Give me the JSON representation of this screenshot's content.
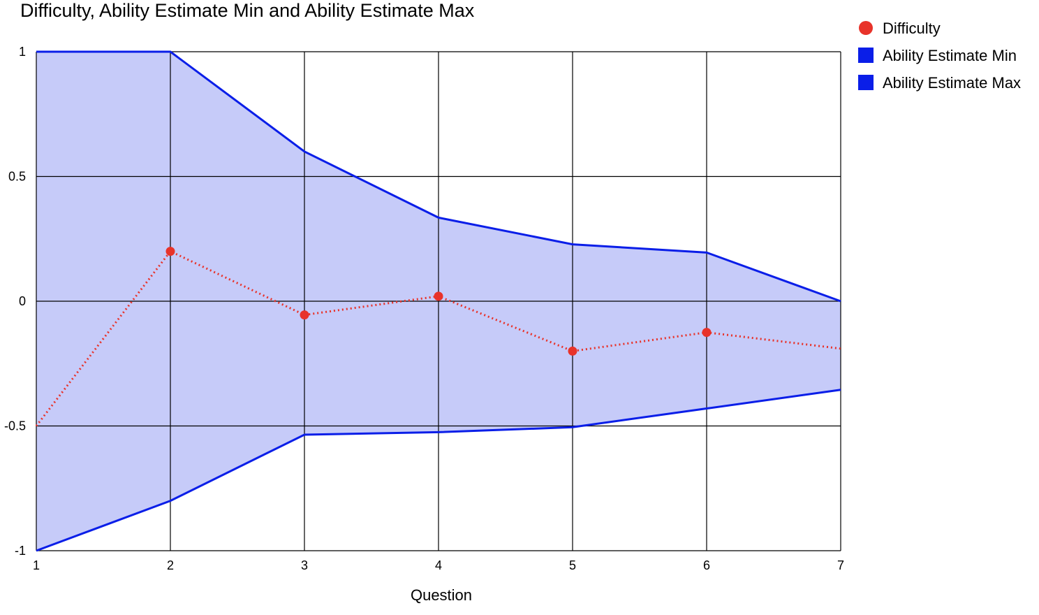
{
  "chart_data": {
    "type": "line",
    "title": "Difficulty, Ability Estimate Min and Ability Estimate Max",
    "xlabel": "Question",
    "ylabel": "",
    "x": [
      1,
      2,
      3,
      4,
      5,
      6,
      7
    ],
    "xlim": [
      1,
      7
    ],
    "ylim": [
      -1,
      1
    ],
    "yticks": [
      -1,
      -0.5,
      0,
      0.5,
      1
    ],
    "ytick_labels": [
      "-1",
      "-0.5",
      "0",
      "0.5",
      "1"
    ],
    "xtick_labels": [
      "1",
      "2",
      "3",
      "4",
      "5",
      "6",
      "7"
    ],
    "grid": true,
    "legend_position": "top-right",
    "series": [
      {
        "name": "Difficulty",
        "kind": "dotted-line-markers",
        "color": "#e8332a",
        "values": [
          -0.5,
          0.2,
          -0.055,
          0.02,
          -0.2,
          -0.125,
          -0.19
        ]
      },
      {
        "name": "Ability Estimate Min",
        "kind": "area-bound",
        "color": "#0a1ee8",
        "values": [
          -1,
          -0.8,
          -0.535,
          -0.525,
          -0.505,
          -0.43,
          -0.355
        ]
      },
      {
        "name": "Ability Estimate Max",
        "kind": "area-bound",
        "color": "#0a1ee8",
        "values": [
          1,
          1,
          0.6,
          0.335,
          0.228,
          0.195,
          0
        ]
      }
    ],
    "fill_color": "#c6cbf9"
  }
}
